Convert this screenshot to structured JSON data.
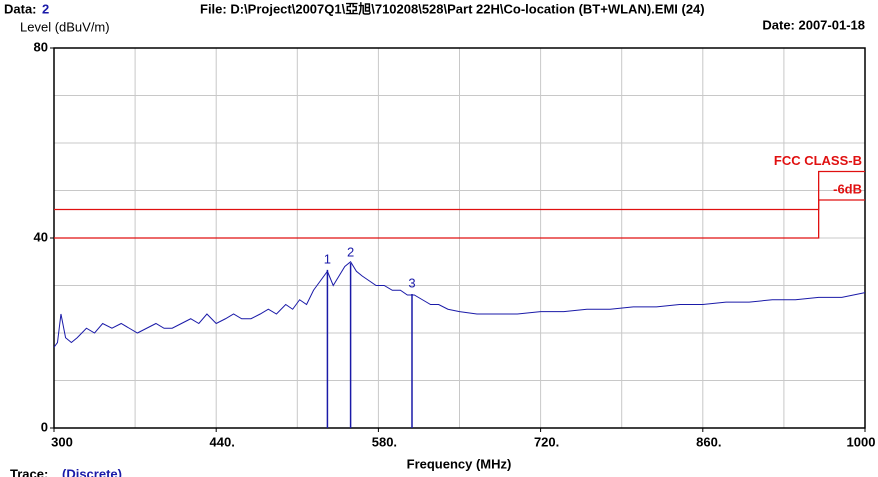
{
  "chart_data": {
    "type": "line",
    "data_label": "Data:",
    "data_number": "2",
    "file_label": "File: D:\\Project\\2007Q1\\亞旭\\710208\\528\\Part 22H\\Co-location (BT+WLAN).EMI  (24)",
    "date_label": "Date: 2007-01-18",
    "ylabel": "Level (dBuV/m)",
    "xlabel": "Frequency (MHz)",
    "trace_label": "Trace:",
    "trace_mode": "(Discrete)",
    "xlim": [
      300,
      1000
    ],
    "ylim": [
      0,
      80
    ],
    "xticks": [
      300,
      {
        "value": 440,
        "label": "440."
      },
      {
        "value": 580,
        "label": "580."
      },
      {
        "value": 720,
        "label": "720."
      },
      {
        "value": 860,
        "label": "860."
      },
      1000
    ],
    "xgrid": [
      370,
      440,
      510,
      580,
      650,
      720,
      790,
      860,
      930
    ],
    "yticks": [
      0,
      40,
      80
    ],
    "ygrid": [
      10,
      20,
      30,
      40,
      50,
      60,
      70
    ],
    "series": [
      {
        "name": "Trace",
        "color": "#1a1aa8",
        "x": [
          300,
          303,
          306,
          310,
          315,
          320,
          328,
          335,
          342,
          350,
          358,
          365,
          372,
          380,
          388,
          395,
          402,
          410,
          418,
          425,
          432,
          440,
          448,
          455,
          462,
          470,
          478,
          485,
          492,
          500,
          506,
          512,
          518,
          524,
          530,
          536,
          541,
          546,
          551,
          556,
          561,
          566,
          572,
          578,
          585,
          592,
          599,
          605,
          611,
          618,
          625,
          632,
          640,
          650,
          665,
          680,
          700,
          720,
          740,
          760,
          780,
          800,
          820,
          840,
          860,
          880,
          900,
          920,
          940,
          960,
          980,
          1000
        ],
        "values": [
          17,
          18,
          24,
          19,
          18,
          19,
          21,
          20,
          22,
          21,
          22,
          21,
          20,
          21,
          22,
          21,
          21,
          22,
          23,
          22,
          24,
          22,
          23,
          24,
          23,
          23,
          24,
          25,
          24,
          26,
          25,
          27,
          26,
          29,
          31,
          33,
          30,
          32,
          34,
          35,
          33,
          32,
          31,
          30,
          30,
          29,
          29,
          28,
          28,
          27,
          26,
          26,
          25,
          24.5,
          24,
          24,
          24,
          24.5,
          24.5,
          25,
          25,
          25.5,
          25.5,
          26,
          26,
          26.5,
          26.5,
          27,
          27,
          27.5,
          27.5,
          28.5
        ]
      },
      {
        "name": "FCC CLASS-B",
        "color": "#e01010",
        "x": [
          300,
          960,
          960,
          1000
        ],
        "values": [
          46,
          46,
          54,
          54
        ]
      },
      {
        "name": "-6dB",
        "color": "#e01010",
        "x": [
          300,
          960,
          960,
          1000
        ],
        "values": [
          40,
          40,
          48,
          48
        ]
      }
    ],
    "markers": [
      {
        "label": "1",
        "x": 536,
        "value": 33.3
      },
      {
        "label": "2",
        "x": 556,
        "value": 34.7
      },
      {
        "label": "3",
        "x": 609,
        "value": 28.2
      }
    ]
  }
}
